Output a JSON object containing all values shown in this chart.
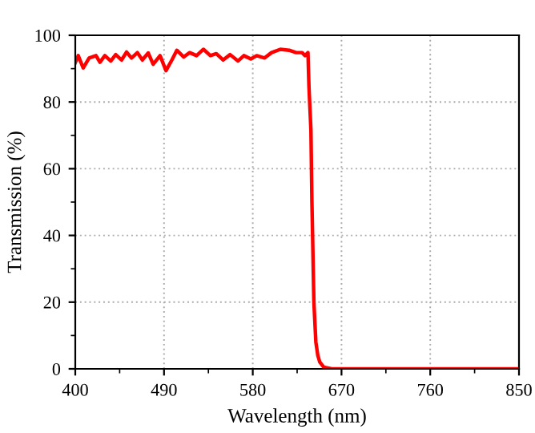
{
  "chart_data": {
    "type": "line",
    "xlabel": "Wavelength (nm)",
    "ylabel": "Transmission (%)",
    "xlim": [
      400,
      850
    ],
    "ylim": [
      0,
      100
    ],
    "xticks": [
      400,
      490,
      580,
      670,
      760,
      850
    ],
    "yticks": [
      0,
      20,
      40,
      60,
      80,
      100
    ],
    "grid": true,
    "marker": "none",
    "line_style": "solid",
    "series": [
      {
        "color": "#ff0000",
        "x": [
          400,
          403,
          408,
          414,
          421,
          425,
          430,
          436,
          441,
          447,
          452,
          457,
          463,
          468,
          474,
          479,
          486,
          492,
          498,
          503,
          510,
          516,
          523,
          530,
          537,
          543,
          550,
          557,
          565,
          571,
          578,
          584,
          592,
          599,
          608,
          617,
          624,
          630,
          633,
          636,
          637,
          639,
          640,
          642,
          644,
          646,
          648,
          652,
          660,
          700,
          760,
          850
        ],
        "values": [
          91.8,
          93.9,
          90.2,
          93.2,
          93.9,
          91.9,
          93.9,
          92.3,
          94.2,
          92.6,
          95,
          93.2,
          94.8,
          92.6,
          94.7,
          91.3,
          93.9,
          89.4,
          92.6,
          95.5,
          93.5,
          94.8,
          93.9,
          95.8,
          93.9,
          94.5,
          92.6,
          94.2,
          92.3,
          93.9,
          92.9,
          93.9,
          93.2,
          94.8,
          95.8,
          95.5,
          94.8,
          94.8,
          93.9,
          94.8,
          84.5,
          71.6,
          50,
          20,
          8,
          4,
          2,
          0.5,
          0,
          0,
          0,
          0
        ]
      }
    ]
  }
}
